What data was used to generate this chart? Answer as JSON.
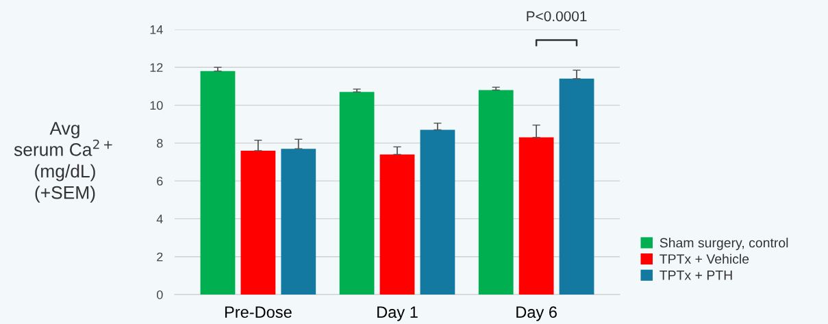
{
  "chart_data": {
    "type": "bar",
    "ylabel": "Avg\nserum Ca$^{2+}$\n(mg/dL)\n(+SEM)",
    "categories": [
      "Pre-Dose",
      "Day 1",
      "Day 6"
    ],
    "series": [
      {
        "name": "Sham surgery, control",
        "color": "#00b050",
        "values": [
          11.8,
          10.7,
          10.8
        ],
        "errors": [
          0.2,
          0.15,
          0.15
        ]
      },
      {
        "name": "TPTx + Vehicle",
        "color": "#ff0000",
        "values": [
          7.6,
          7.4,
          8.3
        ],
        "errors": [
          0.55,
          0.4,
          0.65
        ]
      },
      {
        "name": "TPTx + PTH",
        "color": "#1479a0",
        "values": [
          7.7,
          8.7,
          11.4
        ],
        "errors": [
          0.5,
          0.35,
          0.45
        ]
      }
    ],
    "ylim": [
      0,
      14
    ],
    "yticks": [
      0,
      2,
      4,
      6,
      8,
      10,
      12,
      14
    ],
    "annotations": [
      "P<0.0001"
    ],
    "grid": "y",
    "legend": "bottom right"
  }
}
